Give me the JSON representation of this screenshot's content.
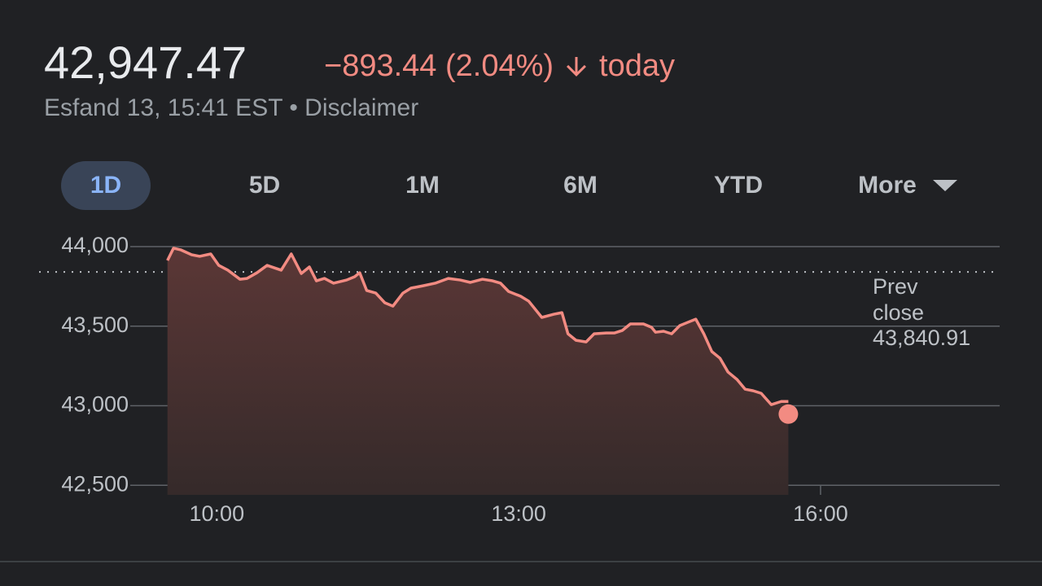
{
  "header": {
    "change": "−893.44 (2.04%)",
    "period": "today",
    "timestamp": "Esfand 13, 15:41 EST",
    "disclaimer": "Disclaimer"
  },
  "tabs": [
    "1D",
    "5D",
    "1M",
    "6M",
    "YTD",
    "More"
  ],
  "chart_data": {
    "type": "line",
    "color": "#f28b82",
    "x": [
      9.51,
      9.57,
      9.64,
      9.75,
      9.83,
      9.94,
      10.02,
      10.11,
      10.23,
      10.3,
      10.4,
      10.5,
      10.64,
      10.74,
      10.84,
      10.92,
      10.99,
      11.07,
      11.16,
      11.29,
      11.37,
      11.42,
      11.49,
      11.58,
      11.67,
      11.75,
      11.85,
      11.93,
      12.05,
      12.17,
      12.3,
      12.42,
      12.52,
      12.64,
      12.74,
      12.82,
      12.9,
      13.02,
      13.1,
      13.23,
      13.35,
      13.43,
      13.49,
      13.57,
      13.67,
      13.75,
      13.87,
      13.95,
      14.03,
      14.11,
      14.24,
      14.32,
      14.36,
      14.44,
      14.52,
      14.6,
      14.68,
      14.76,
      14.84,
      14.92,
      15.0,
      15.08,
      15.17,
      15.25,
      15.33,
      15.41,
      15.51,
      15.61,
      15.68
    ],
    "values": [
      43913,
      43990,
      43980,
      43949,
      43939,
      43954,
      43882,
      43852,
      43795,
      43800,
      43836,
      43882,
      43852,
      43954,
      43831,
      43872,
      43785,
      43800,
      43770,
      43790,
      43811,
      43836,
      43724,
      43708,
      43647,
      43626,
      43708,
      43739,
      43754,
      43770,
      43800,
      43790,
      43775,
      43795,
      43785,
      43770,
      43718,
      43688,
      43657,
      43555,
      43575,
      43585,
      43452,
      43411,
      43401,
      43452,
      43457,
      43457,
      43473,
      43514,
      43514,
      43493,
      43462,
      43468,
      43452,
      43503,
      43524,
      43544,
      43452,
      43340,
      43299,
      43212,
      43165,
      43104,
      43094,
      43078,
      43007,
      43027,
      43027
    ],
    "last": {
      "x": 15.68,
      "value": 42947.47,
      "label": "42,947.47"
    },
    "reference": {
      "name": "Prev close",
      "value": 43840.91,
      "label": "43,840.91"
    },
    "xlim": [
      9.14,
      17.78
    ],
    "xticks": [
      {
        "value": 10,
        "label": "10:00"
      },
      {
        "value": 13,
        "label": "13:00"
      },
      {
        "value": 16,
        "label": "16:00"
      }
    ],
    "ylim": [
      42440,
      44000
    ],
    "yticks": [
      {
        "value": 42500,
        "label": "42,500"
      },
      {
        "value": 43000,
        "label": "43,000"
      },
      {
        "value": 43500,
        "label": "43,500"
      },
      {
        "value": 44000,
        "label": "44,000"
      }
    ],
    "grid": true
  }
}
